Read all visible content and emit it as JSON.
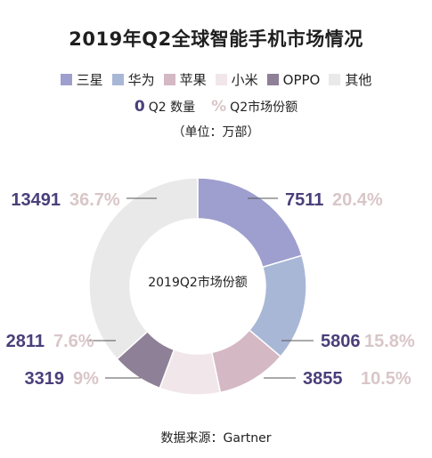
{
  "title": "2019年Q2全球智能手机市场情况",
  "legend": [
    {
      "label": "三星",
      "color": "#9e9fce"
    },
    {
      "label": "华为",
      "color": "#a9b7d6"
    },
    {
      "label": "苹果",
      "color": "#d4b8c3"
    },
    {
      "label": "小米",
      "color": "#f1e6ea"
    },
    {
      "label": "OPPO",
      "color": "#8e8096"
    },
    {
      "label": "其他",
      "color": "#e8e9e8"
    }
  ],
  "legend2": {
    "num_glyph": "0",
    "num_label": "Q2 数量",
    "pct_glyph": "%",
    "pct_label": "Q2市场份额"
  },
  "unit": "（单位：万部）",
  "center_label": "2019Q2市场份额",
  "source": "数据来源：Gartner",
  "colors": {
    "number": "#4a3f7a",
    "percent": "#d9c6c8",
    "leader": "#555555"
  },
  "chart_data": {
    "type": "pie",
    "donut": true,
    "start_angle_deg": 0,
    "direction": "clockwise",
    "slices": [
      {
        "category": "三星",
        "value": 7511,
        "percent": "20.4%",
        "color": "#9e9fce"
      },
      {
        "category": "华为",
        "value": 5806,
        "percent": "15.8%",
        "color": "#a9b7d6"
      },
      {
        "category": "苹果",
        "value": 3855,
        "percent": "10.5%",
        "color": "#d4b8c3"
      },
      {
        "category": "小米",
        "value": 3319,
        "percent": "9%",
        "color": "#f1e6ea"
      },
      {
        "category": "OPPO",
        "value": 2811,
        "percent": "7.6%",
        "color": "#8e8096"
      },
      {
        "category": "其他",
        "value": 13491,
        "percent": "36.7%",
        "color": "#e8e9e8"
      }
    ]
  }
}
